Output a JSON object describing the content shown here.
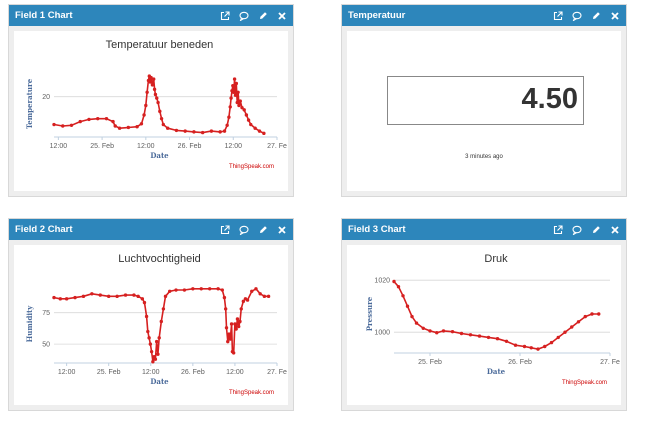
{
  "panels": [
    {
      "title": "Field 1 Chart"
    },
    {
      "title": "Temperatuur"
    },
    {
      "title": "Field 2 Chart"
    },
    {
      "title": "Field 3 Chart"
    }
  ],
  "numeric_display": {
    "value": "4.50",
    "updated": "3 minutes ago"
  },
  "chart_data": [
    {
      "type": "line",
      "title": "Temperatuur beneden",
      "xlabel": "Date",
      "ylabel": "Temperature",
      "credit": "ThingSpeak.com",
      "color": "#d62020",
      "x_tick_labels": [
        "12:00",
        "25. Feb",
        "12:00",
        "26. Feb",
        "12:00",
        "27. Fe"
      ],
      "x_ticks": [
        0,
        1,
        2,
        3,
        4,
        5
      ],
      "xlim": [
        -0.1,
        5
      ],
      "y_ticks": [
        20
      ],
      "ylim": [
        14.5,
        23.5
      ],
      "points": [
        [
          -0.1,
          16.2
        ],
        [
          0.1,
          16.0
        ],
        [
          0.3,
          16.1
        ],
        [
          0.5,
          16.6
        ],
        [
          0.7,
          16.9
        ],
        [
          0.9,
          17.0
        ],
        [
          1.1,
          17.0
        ],
        [
          1.25,
          16.6
        ],
        [
          1.3,
          16.0
        ],
        [
          1.4,
          15.7
        ],
        [
          1.6,
          15.8
        ],
        [
          1.8,
          15.9
        ],
        [
          1.9,
          16.3
        ],
        [
          1.96,
          17.5
        ],
        [
          2.0,
          18.8
        ],
        [
          2.03,
          20.6
        ],
        [
          2.06,
          22.2
        ],
        [
          2.08,
          22.8
        ],
        [
          2.1,
          22.0
        ],
        [
          2.12,
          22.6
        ],
        [
          2.15,
          21.6
        ],
        [
          2.18,
          22.4
        ],
        [
          2.2,
          21.0
        ],
        [
          2.22,
          20.3
        ],
        [
          2.25,
          19.8
        ],
        [
          2.28,
          19.2
        ],
        [
          2.32,
          18.0
        ],
        [
          2.36,
          17.0
        ],
        [
          2.4,
          16.2
        ],
        [
          2.5,
          15.7
        ],
        [
          2.7,
          15.4
        ],
        [
          2.9,
          15.3
        ],
        [
          3.1,
          15.2
        ],
        [
          3.3,
          15.1
        ],
        [
          3.5,
          15.3
        ],
        [
          3.7,
          15.2
        ],
        [
          3.8,
          15.3
        ],
        [
          3.86,
          16.1
        ],
        [
          3.9,
          17.2
        ],
        [
          3.93,
          18.6
        ],
        [
          3.95,
          19.8
        ],
        [
          3.97,
          20.8
        ],
        [
          3.99,
          21.5
        ],
        [
          4.01,
          20.6
        ],
        [
          4.03,
          22.4
        ],
        [
          4.05,
          20.2
        ],
        [
          4.07,
          21.8
        ],
        [
          4.09,
          19.2
        ],
        [
          4.11,
          20.6
        ],
        [
          4.13,
          18.8
        ],
        [
          4.16,
          19.4
        ],
        [
          4.2,
          18.5
        ],
        [
          4.25,
          18.2
        ],
        [
          4.3,
          17.5
        ],
        [
          4.35,
          16.8
        ],
        [
          4.4,
          16.2
        ],
        [
          4.5,
          15.7
        ],
        [
          4.6,
          15.3
        ],
        [
          4.7,
          15.0
        ]
      ]
    },
    {
      "type": "line",
      "title": "Luchtvochtigheid",
      "xlabel": "Date",
      "ylabel": "Humidity",
      "credit": "ThingSpeak.com",
      "color": "#d62020",
      "x_tick_labels": [
        "12:00",
        "25. Feb",
        "12:00",
        "26. Feb",
        "12:00",
        "27. Fe"
      ],
      "x_ticks": [
        0,
        1,
        2,
        3,
        4,
        5
      ],
      "xlim": [
        -0.3,
        5
      ],
      "y_ticks": [
        50,
        75
      ],
      "ylim": [
        35,
        97
      ],
      "points": [
        [
          -0.3,
          87
        ],
        [
          -0.15,
          86
        ],
        [
          0.0,
          86
        ],
        [
          0.2,
          87
        ],
        [
          0.4,
          88
        ],
        [
          0.6,
          90
        ],
        [
          0.8,
          89
        ],
        [
          1.0,
          88
        ],
        [
          1.2,
          88
        ],
        [
          1.4,
          89
        ],
        [
          1.6,
          89
        ],
        [
          1.7,
          88
        ],
        [
          1.8,
          86
        ],
        [
          1.85,
          83
        ],
        [
          1.9,
          72
        ],
        [
          1.93,
          60
        ],
        [
          1.96,
          55
        ],
        [
          1.99,
          50
        ],
        [
          2.02,
          44
        ],
        [
          2.05,
          36
        ],
        [
          2.08,
          40
        ],
        [
          2.11,
          38
        ],
        [
          2.14,
          52
        ],
        [
          2.17,
          42
        ],
        [
          2.2,
          55
        ],
        [
          2.25,
          68
        ],
        [
          2.3,
          78
        ],
        [
          2.35,
          88
        ],
        [
          2.45,
          92
        ],
        [
          2.6,
          93
        ],
        [
          2.8,
          93
        ],
        [
          3.0,
          94
        ],
        [
          3.2,
          94
        ],
        [
          3.4,
          94
        ],
        [
          3.6,
          94
        ],
        [
          3.7,
          93
        ],
        [
          3.75,
          87
        ],
        [
          3.78,
          78
        ],
        [
          3.8,
          63
        ],
        [
          3.83,
          52
        ],
        [
          3.86,
          58
        ],
        [
          3.89,
          54
        ],
        [
          3.92,
          66
        ],
        [
          3.94,
          44
        ],
        [
          3.97,
          43
        ],
        [
          4.0,
          66
        ],
        [
          4.03,
          62
        ],
        [
          4.06,
          70
        ],
        [
          4.09,
          64
        ],
        [
          4.12,
          68
        ],
        [
          4.15,
          78
        ],
        [
          4.2,
          84
        ],
        [
          4.25,
          86
        ],
        [
          4.3,
          85
        ],
        [
          4.4,
          92
        ],
        [
          4.5,
          94
        ],
        [
          4.6,
          90
        ],
        [
          4.7,
          88
        ],
        [
          4.8,
          88
        ]
      ]
    },
    {
      "type": "line",
      "title": "Druk",
      "xlabel": "Date",
      "ylabel": "Pressure",
      "credit": "ThingSpeak.com",
      "color": "#d62020",
      "x_tick_labels": [
        "25. Feb",
        "26. Feb",
        "27. Fe"
      ],
      "x_ticks": [
        1,
        3,
        5
      ],
      "xlim": [
        0.2,
        5
      ],
      "y_ticks": [
        1000,
        1020
      ],
      "ylim": [
        992,
        1022
      ],
      "points": [
        [
          0.2,
          1019.5
        ],
        [
          0.3,
          1017.5
        ],
        [
          0.4,
          1014
        ],
        [
          0.5,
          1010
        ],
        [
          0.6,
          1006
        ],
        [
          0.7,
          1003.5
        ],
        [
          0.85,
          1001.5
        ],
        [
          1.0,
          1000.5
        ],
        [
          1.15,
          999.8
        ],
        [
          1.3,
          1000.5
        ],
        [
          1.5,
          1000.2
        ],
        [
          1.7,
          999.5
        ],
        [
          1.9,
          999
        ],
        [
          2.1,
          998.5
        ],
        [
          2.3,
          998
        ],
        [
          2.5,
          997.5
        ],
        [
          2.7,
          996.5
        ],
        [
          2.9,
          995
        ],
        [
          3.1,
          994.5
        ],
        [
          3.25,
          994
        ],
        [
          3.4,
          993.5
        ],
        [
          3.55,
          994.5
        ],
        [
          3.7,
          996
        ],
        [
          3.85,
          998
        ],
        [
          4.0,
          1000
        ],
        [
          4.15,
          1002
        ],
        [
          4.3,
          1004
        ],
        [
          4.45,
          1006
        ],
        [
          4.6,
          1007
        ],
        [
          4.75,
          1007
        ]
      ]
    }
  ]
}
